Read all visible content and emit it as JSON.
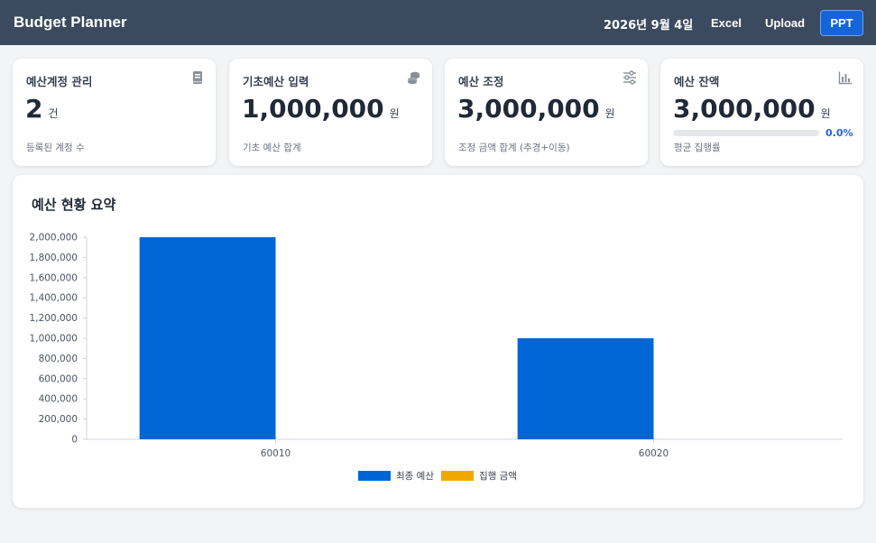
{
  "header": {
    "brand": "Budget Planner",
    "date": "2026년 9월 4일",
    "buttons": {
      "excel": "Excel",
      "upload": "Upload",
      "ppt": "PPT"
    }
  },
  "cards": [
    {
      "title": "예산계정 관리",
      "value": "2",
      "unit": "건",
      "sub": "등록된 계정 수",
      "icon": "book-icon"
    },
    {
      "title": "기초예산 입력",
      "value": "1,000,000",
      "unit": "원",
      "sub": "기초 예산 합계",
      "icon": "coins-icon"
    },
    {
      "title": "예산 조정",
      "value": "3,000,000",
      "unit": "원",
      "sub": "조정 금액 합계 (추경+이동)",
      "icon": "sliders-icon"
    },
    {
      "title": "예산 잔액",
      "value": "3,000,000",
      "unit": "원",
      "sub": "평균 집행률",
      "progress_label": "0.0%",
      "progress_value": 0.0,
      "icon": "bar-chart-icon"
    }
  ],
  "panel": {
    "title": "예산 현황 요약"
  },
  "colors": {
    "header": "#3b4a5e",
    "accent": "#1565d8",
    "final_budget": "#0066d6",
    "executed": "#f0a800"
  },
  "chart_data": {
    "type": "bar",
    "categories": [
      "60010",
      "60020"
    ],
    "series": [
      {
        "name": "최종 예산",
        "values": [
          2000000,
          1000000
        ]
      },
      {
        "name": "집행 금액",
        "values": [
          0,
          0
        ]
      }
    ],
    "ylim": [
      0,
      2000000
    ],
    "yticks": [
      0,
      200000,
      400000,
      600000,
      800000,
      1000000,
      1200000,
      1400000,
      1600000,
      1800000,
      2000000
    ],
    "ytick_labels": [
      "0",
      "200,000",
      "400,000",
      "600,000",
      "800,000",
      "1,000,000",
      "1,200,000",
      "1,400,000",
      "1,600,000",
      "1,800,000",
      "2,000,000"
    ],
    "legend_position": "bottom",
    "grid": false
  }
}
